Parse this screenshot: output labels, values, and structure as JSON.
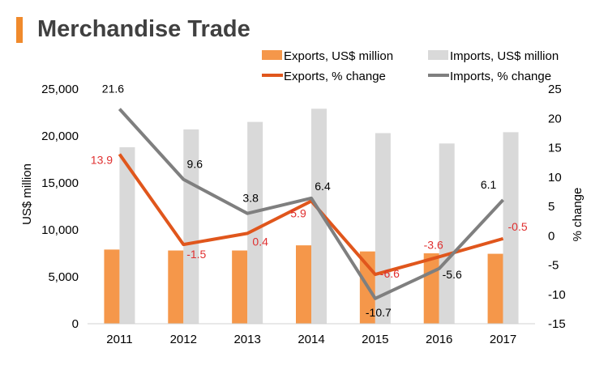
{
  "page": {
    "title": "Merchandise Trade"
  },
  "chart_data": {
    "type": "bar",
    "categories": [
      "2011",
      "2012",
      "2013",
      "2014",
      "2015",
      "2016",
      "2017"
    ],
    "series": [
      {
        "name": "Exports, US$ million",
        "kind": "bar",
        "axis": "left",
        "color": "#f5974a",
        "values": [
          7900,
          7800,
          7800,
          8350,
          7700,
          7500,
          7450
        ]
      },
      {
        "name": "Imports, US$ million",
        "kind": "bar",
        "axis": "left",
        "color": "#d9d9d9",
        "values": [
          18800,
          20700,
          21500,
          22900,
          20300,
          19200,
          20400
        ]
      },
      {
        "name": "Exports, % change",
        "kind": "line",
        "axis": "right",
        "color": "#e0561c",
        "values": [
          13.9,
          -1.5,
          0.4,
          5.9,
          -6.6,
          -3.6,
          -0.5
        ],
        "labels": [
          "13.9",
          "-1.5",
          "0.4",
          "5.9",
          "-6.6",
          "-3.6",
          "-0.5"
        ]
      },
      {
        "name": "Imports, % change",
        "kind": "line",
        "axis": "right",
        "color": "#7f7f7f",
        "values": [
          21.6,
          9.6,
          3.8,
          6.4,
          -10.7,
          -5.6,
          6.1
        ],
        "labels": [
          "21.6",
          "9.6",
          "3.8",
          "6.4",
          "-10.7",
          "-5.6",
          "6.1"
        ]
      }
    ],
    "y_left": {
      "label": "US$ million",
      "range": [
        0,
        25000
      ],
      "ticks": [
        0,
        5000,
        10000,
        15000,
        20000,
        25000
      ],
      "tick_labels": [
        "0",
        "5,000",
        "10,000",
        "15,000",
        "20,000",
        "25,000"
      ]
    },
    "y_right": {
      "label": "% change",
      "range": [
        -15,
        25
      ],
      "ticks": [
        -15,
        -10,
        -5,
        0,
        5,
        10,
        15,
        20,
        25
      ],
      "tick_labels": [
        "-15",
        "-10",
        "-5",
        "0",
        "5",
        "10",
        "15",
        "20",
        "25"
      ]
    },
    "legend": "top",
    "grid": false
  }
}
